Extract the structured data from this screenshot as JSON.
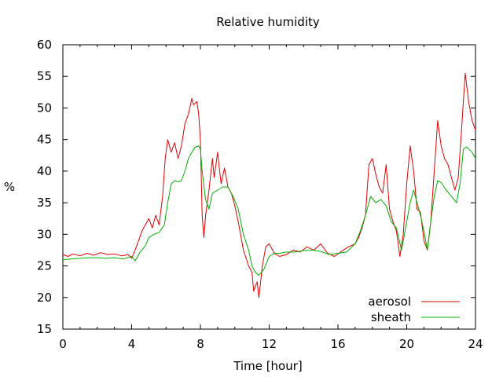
{
  "chart_data": {
    "type": "line",
    "title": "Relative humidity",
    "xlabel": "Time [hour]",
    "ylabel": "%",
    "xlim": [
      0,
      24
    ],
    "ylim": [
      15,
      60
    ],
    "xticks": [
      0,
      4,
      8,
      12,
      16,
      20,
      24
    ],
    "yticks": [
      15,
      20,
      25,
      30,
      35,
      40,
      45,
      50,
      55,
      60
    ],
    "grid": false,
    "legend_position": "bottom-right",
    "series": [
      {
        "name": "aerosol",
        "color": "#e00000",
        "x": [
          0,
          0.3,
          0.6,
          1,
          1.4,
          1.8,
          2.2,
          2.6,
          3,
          3.4,
          3.8,
          4.0,
          4.2,
          4.4,
          4.6,
          4.8,
          5.0,
          5.2,
          5.4,
          5.6,
          5.8,
          5.95,
          6.1,
          6.3,
          6.5,
          6.7,
          6.9,
          7.1,
          7.3,
          7.5,
          7.6,
          7.8,
          7.9,
          8.0,
          8.1,
          8.2,
          8.3,
          8.5,
          8.7,
          8.8,
          9.0,
          9.2,
          9.4,
          9.6,
          9.8,
          10.0,
          10.2,
          10.5,
          10.8,
          11.0,
          11.1,
          11.3,
          11.4,
          11.6,
          11.8,
          12.0,
          12.3,
          12.6,
          13.0,
          13.4,
          13.8,
          14.2,
          14.6,
          15.0,
          15.4,
          15.8,
          16.2,
          16.6,
          17.0,
          17.2,
          17.4,
          17.6,
          17.8,
          18.0,
          18.2,
          18.4,
          18.6,
          18.8,
          19.0,
          19.2,
          19.4,
          19.6,
          19.8,
          20.0,
          20.2,
          20.4,
          20.6,
          20.8,
          21.0,
          21.2,
          21.4,
          21.6,
          21.8,
          22.0,
          22.2,
          22.4,
          22.6,
          22.8,
          23.0,
          23.2,
          23.4,
          23.6,
          23.8,
          24.0
        ],
        "values": [
          26.8,
          26.5,
          26.9,
          26.6,
          27.0,
          26.7,
          27.1,
          26.8,
          26.9,
          26.6,
          26.8,
          26.2,
          27.5,
          29,
          30.5,
          31.5,
          32.5,
          31,
          33,
          31.5,
          36,
          42,
          45,
          43,
          44.5,
          42,
          44,
          47.5,
          49,
          51.5,
          50.5,
          51,
          49,
          45,
          33,
          29.5,
          33,
          37,
          42,
          39,
          43,
          38,
          40.5,
          37.5,
          36.5,
          34.5,
          32,
          27.5,
          25,
          24,
          21,
          22.5,
          20,
          25,
          28,
          28.5,
          27,
          26.5,
          26.8,
          27.5,
          27.2,
          28,
          27.5,
          28.5,
          27,
          26.5,
          27.3,
          28,
          28.5,
          29.5,
          31,
          33,
          41,
          42,
          39.5,
          37.5,
          36.5,
          41,
          34,
          32,
          30.5,
          26.5,
          30,
          38,
          44,
          40,
          34,
          33.5,
          29,
          27.5,
          32,
          40,
          48,
          44,
          42,
          41,
          39,
          37,
          39,
          47,
          55.5,
          51,
          48,
          46.5
        ]
      },
      {
        "name": "sheath",
        "color": "#00b000",
        "x": [
          0,
          0.5,
          1,
          1.5,
          2,
          2.5,
          3,
          3.5,
          4.0,
          4.2,
          4.5,
          4.8,
          5.0,
          5.3,
          5.6,
          5.9,
          6.1,
          6.3,
          6.5,
          6.7,
          6.9,
          7.1,
          7.3,
          7.5,
          7.7,
          7.9,
          8.0,
          8.1,
          8.3,
          8.5,
          8.7,
          9.0,
          9.3,
          9.6,
          9.9,
          10.2,
          10.5,
          10.8,
          11.0,
          11.2,
          11.4,
          11.7,
          12.0,
          12.3,
          12.6,
          13.0,
          13.5,
          14.0,
          14.5,
          15.0,
          15.5,
          16.0,
          16.5,
          17.0,
          17.3,
          17.6,
          17.9,
          18.2,
          18.5,
          18.8,
          19.1,
          19.4,
          19.7,
          20.0,
          20.2,
          20.4,
          20.6,
          20.8,
          21.0,
          21.2,
          21.4,
          21.6,
          21.8,
          22.0,
          22.3,
          22.6,
          22.9,
          23.1,
          23.3,
          23.5,
          23.8,
          24.0
        ],
        "values": [
          26.0,
          26.1,
          26.2,
          26.3,
          26.3,
          26.2,
          26.3,
          26.1,
          26.5,
          25.8,
          27.2,
          28.2,
          29.5,
          30,
          30.3,
          31.5,
          35,
          38,
          38.5,
          38.3,
          38.5,
          40,
          42,
          43,
          43.8,
          44,
          43.5,
          40,
          35.5,
          34,
          36.5,
          37,
          37.5,
          37.5,
          36,
          34,
          30,
          27.5,
          25,
          24,
          23.5,
          24.5,
          26.5,
          27,
          27,
          27.2,
          27.2,
          27.4,
          27.5,
          27.3,
          26.8,
          27,
          27.2,
          28.5,
          30.5,
          33,
          36,
          35,
          35.5,
          34.5,
          32,
          31,
          27.5,
          32,
          35,
          37,
          35,
          33,
          30.5,
          27.5,
          32,
          36,
          38.5,
          38.2,
          37,
          36,
          35,
          38,
          43.5,
          43.8,
          43,
          42
        ]
      }
    ]
  }
}
